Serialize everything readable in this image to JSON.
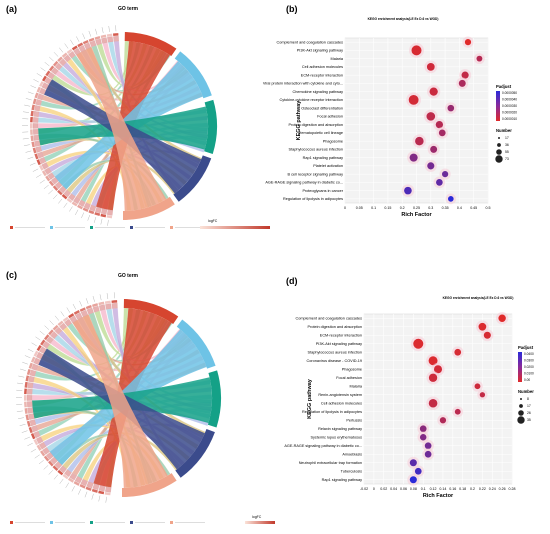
{
  "chart_data": [
    {
      "panel": "(a)",
      "type": "chord",
      "title": "GO term",
      "legend_title": "logFC",
      "terms": [
        {
          "color": "#d6452f"
        },
        {
          "color": "#6ec3e6"
        },
        {
          "color": "#14a187"
        },
        {
          "color": "#3b4b8c"
        },
        {
          "color": "#f0a48a"
        }
      ]
    },
    {
      "panel": "(b)",
      "type": "scatter",
      "title": "KEGG enrichment analysis(LE Ex D.6 vs WOD)",
      "xlabel": "Rich Factor",
      "ylabel": "KEGG pathway",
      "xlim": [
        0,
        0.5
      ],
      "xticks": [
        "0",
        "0.05",
        "0.1",
        "0.15",
        "0.2",
        "0.25",
        "0.3",
        "0.35",
        "0.4",
        "0.45",
        "0.5"
      ],
      "legend": {
        "color_title": "Padjust",
        "color_ticks": [
          "0.0000050",
          "0.0000040",
          "0.0000030",
          "0.0000020",
          "0.0000010"
        ],
        "size_title": "Number",
        "size_ticks": [
          "17",
          "36",
          "55",
          "73"
        ]
      },
      "categories": [
        "Complement and coagulation cascades",
        "PI3K-Akt signaling pathway",
        "Malaria",
        "Cell adhesion molecules",
        "ECM-receptor interaction",
        "Viral protein interaction with cytokine and cyto...",
        "Chemokine signaling pathway",
        "Cytokine-cytokine receptor interaction",
        "Osteoclast differentiation",
        "Focal adhesion",
        "Protein digestion and absorption",
        "Hematopoietic cell lineage",
        "Phagosome",
        "Staphylococcus aureus infection",
        "Rap1 signaling pathway",
        "Platelet activation",
        "B cell receptor signaling pathway",
        "AGE-RAGE signaling pathway in diabetic co...",
        "Proteoglycans in cancer",
        "Regulation of lipolysis in adipocytes"
      ],
      "x": [
        0.43,
        0.25,
        0.47,
        0.3,
        0.42,
        0.41,
        0.31,
        0.24,
        0.37,
        0.3,
        0.33,
        0.34,
        0.26,
        0.31,
        0.24,
        0.3,
        0.35,
        0.33,
        0.22,
        0.37
      ],
      "size": [
        20,
        73,
        17,
        38,
        30,
        28,
        45,
        70,
        24,
        50,
        32,
        26,
        48,
        28,
        42,
        30,
        20,
        25,
        36,
        15
      ],
      "padjust": [
        8e-07,
        1e-06,
        1.8e-06,
        1.2e-06,
        1.5e-06,
        2e-06,
        1.3e-06,
        1.1e-06,
        2.5e-06,
        1.6e-06,
        1.8e-06,
        2.2e-06,
        1.7e-06,
        2.4e-06,
        3e-06,
        3.3e-06,
        3.5e-06,
        3.8e-06,
        4.2e-06,
        5e-06
      ]
    },
    {
      "panel": "(c)",
      "type": "chord",
      "title": "GO term",
      "legend_title": "logFC",
      "terms": [
        {
          "color": "#d6452f"
        },
        {
          "color": "#6ec3e6"
        },
        {
          "color": "#14a187"
        },
        {
          "color": "#3b4b8c"
        },
        {
          "color": "#f0a48a"
        }
      ]
    },
    {
      "panel": "(d)",
      "type": "scatter",
      "title": "KEGG enrichment analysis(LE Ex D.6 vs WOD)",
      "xlabel": "Rich Factor",
      "ylabel": "KEGG pathway",
      "xlim": [
        -0.02,
        0.28
      ],
      "xticks": [
        "-0.02",
        "0",
        "0.02",
        "0.04",
        "0.06",
        "0.08",
        "0.1",
        "0.12",
        "0.14",
        "0.16",
        "0.18",
        "0.2",
        "0.22",
        "0.24",
        "0.26",
        "0.28"
      ],
      "legend": {
        "color_title": "Padjust",
        "color_ticks": [
          "0.0400",
          "0.0300",
          "0.0200",
          "0.0100",
          "0.00"
        ],
        "size_title": "Number",
        "size_ticks": [
          "8",
          "17",
          "26",
          "35"
        ]
      },
      "categories": [
        "Complement and coagulation cascades",
        "Protein digestion and absorption",
        "ECM-receptor interaction",
        "PI3K-Akt signaling pathway",
        "Staphylococcus aureus infection",
        "Coronavirus disease - COVID-19",
        "Phagosome",
        "Focal adhesion",
        "Malaria",
        "Renin-angiotensin system",
        "Cell adhesion molecules",
        "Regulation of lipolysis in adipocytes",
        "Pertussis",
        "Relaxin signaling pathway",
        "Systemic lupus erythematosus",
        "AGE-RAGE signaling pathway in diabetic co...",
        "Amoebiasis",
        "Neutrophil extracellular trap formation",
        "Tuberculosis",
        "Rap1 signaling pathway"
      ],
      "x": [
        0.26,
        0.22,
        0.23,
        0.09,
        0.17,
        0.12,
        0.13,
        0.12,
        0.21,
        0.22,
        0.12,
        0.17,
        0.14,
        0.1,
        0.1,
        0.11,
        0.11,
        0.08,
        0.09,
        0.08
      ],
      "size": [
        16,
        18,
        14,
        35,
        12,
        26,
        20,
        22,
        8,
        6,
        24,
        8,
        10,
        12,
        11,
        12,
        12,
        14,
        12,
        14
      ],
      "padjust": [
        0.002,
        0.003,
        0.004,
        0.003,
        0.004,
        0.003,
        0.005,
        0.006,
        0.006,
        0.008,
        0.008,
        0.01,
        0.012,
        0.02,
        0.022,
        0.025,
        0.026,
        0.03,
        0.035,
        0.04
      ]
    }
  ]
}
